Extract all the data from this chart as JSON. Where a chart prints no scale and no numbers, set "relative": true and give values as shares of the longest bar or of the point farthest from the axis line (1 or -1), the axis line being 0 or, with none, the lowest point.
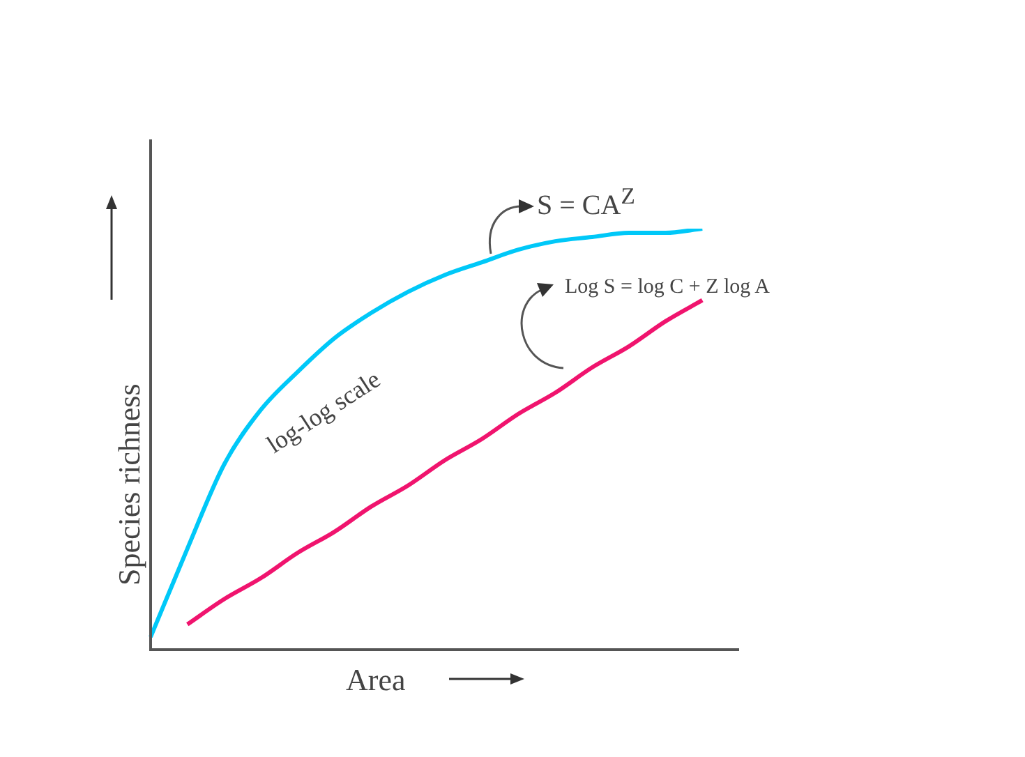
{
  "chart_data": {
    "type": "line",
    "relative": true,
    "xlabel": "Area",
    "ylabel": "Species richness",
    "tick_labels": false,
    "marker": "none",
    "line_style": "solid",
    "categories": [
      null,
      null,
      null,
      null,
      null,
      null,
      null,
      null,
      null,
      null,
      null,
      null,
      null,
      null,
      null,
      null,
      null
    ],
    "series": [
      {
        "color": "#00c8f8",
        "values": [
          0.03,
          0.24,
          0.44,
          0.57,
          0.66,
          0.74,
          0.8,
          0.85,
          0.89,
          0.92,
          0.95,
          0.97,
          0.98,
          0.99,
          0.99,
          1,
          null
        ]
      },
      {
        "color": "#f0146e",
        "values": [
          null,
          0.06,
          0.12,
          0.17,
          0.23,
          0.28,
          0.34,
          0.39,
          0.45,
          0.5,
          0.56,
          0.61,
          0.67,
          0.72,
          0.78,
          0.83,
          null
        ]
      }
    ],
    "annotations": [
      "S = CA$^{Z}$",
      "Log S = log C + Z log A",
      "log-log scale"
    ]
  }
}
